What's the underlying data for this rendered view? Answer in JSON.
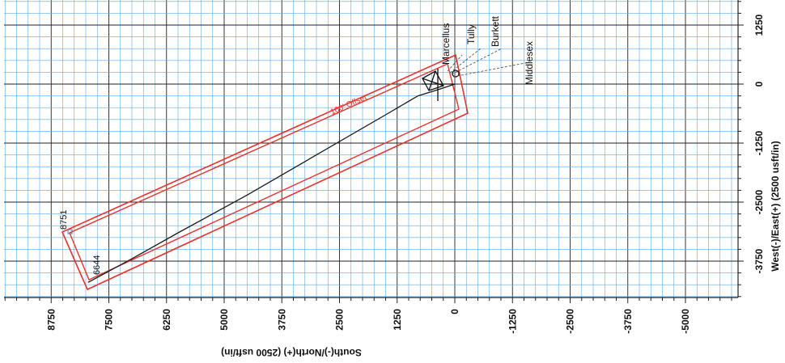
{
  "plot": {
    "x_axis_title": "South(-)/North(+) (2500 usft/in)",
    "y_axis_title": "West(-)/East(+) (2500 usft/in)",
    "x_ticks": [
      "8750",
      "7500",
      "6250",
      "5000",
      "3750",
      "2500",
      "1250",
      "0",
      "-1250",
      "-2500",
      "-3750",
      "-5000"
    ],
    "y_ticks": [
      "1250",
      "0",
      "-1250",
      "-2500",
      "-3750"
    ],
    "grid": true,
    "colors": {
      "grid_minor": "#5aa7e6",
      "grid_major": "#222222",
      "offset_line": "#e8322c",
      "wellpath": "#1a1a1a",
      "target_box": "#6a6aa8"
    }
  },
  "labels": {
    "formations": [
      "Marcellus",
      "Tully",
      "Burkett",
      "Middlesex"
    ],
    "offset_label": "100' Offset",
    "md_label_a": "6644",
    "md_label_b": "8751"
  },
  "chart_data": {
    "type": "line",
    "xlabel": "South(-)/North(+) (2500 usft/in)",
    "ylabel": "West(-)/East(+) (2500 usft/in)",
    "xlim": [
      9750,
      -6250
    ],
    "ylim": [
      1900,
      -4700
    ],
    "series": [
      {
        "points": [
          [
            0,
            0
          ],
          [
            300,
            -100
          ],
          [
            800,
            -250
          ],
          [
            1500,
            -650
          ],
          [
            3000,
            -1500
          ],
          [
            4500,
            -2350
          ],
          [
            6000,
            -3150
          ],
          [
            7000,
            -3700
          ],
          [
            7950,
            -4200
          ]
        ]
      }
    ]
  }
}
